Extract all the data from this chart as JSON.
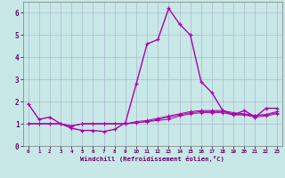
{
  "xlabel": "Windchill (Refroidissement éolien,°C)",
  "background_color": "#c8e8e8",
  "grid_color": "#aab8cc",
  "line_color": "#aa00aa",
  "hours": [
    0,
    1,
    2,
    3,
    4,
    5,
    6,
    7,
    8,
    9,
    10,
    11,
    12,
    13,
    14,
    15,
    16,
    17,
    18,
    19,
    20,
    21,
    22,
    23
  ],
  "line_main": [
    1.9,
    1.2,
    1.3,
    1.0,
    0.8,
    0.7,
    0.7,
    0.65,
    0.75,
    1.05,
    2.8,
    4.6,
    4.8,
    6.2,
    5.5,
    5.0,
    2.9,
    2.4,
    1.6,
    1.4,
    1.6,
    1.3,
    1.7,
    1.7
  ],
  "line_flat1": [
    1.0,
    1.0,
    1.0,
    1.0,
    0.9,
    1.0,
    1.0,
    1.0,
    1.0,
    1.0,
    1.05,
    1.1,
    1.15,
    1.2,
    1.35,
    1.45,
    1.5,
    1.5,
    1.5,
    1.4,
    1.4,
    1.3,
    1.35,
    1.45
  ],
  "line_flat2": [
    1.0,
    1.0,
    1.0,
    1.0,
    0.9,
    1.0,
    1.0,
    1.0,
    1.0,
    1.0,
    1.05,
    1.1,
    1.2,
    1.3,
    1.4,
    1.5,
    1.55,
    1.55,
    1.55,
    1.45,
    1.4,
    1.35,
    1.4,
    1.5
  ],
  "line_flat3": [
    1.0,
    1.0,
    1.0,
    1.0,
    0.9,
    1.0,
    1.0,
    1.0,
    1.0,
    1.0,
    1.1,
    1.15,
    1.25,
    1.35,
    1.45,
    1.55,
    1.6,
    1.6,
    1.6,
    1.5,
    1.45,
    1.38,
    1.42,
    1.55
  ],
  "ylim": [
    0,
    6.5
  ],
  "xlim": [
    -0.5,
    23.5
  ],
  "yticks": [
    0,
    1,
    2,
    3,
    4,
    5,
    6
  ],
  "xticks": [
    0,
    1,
    2,
    3,
    4,
    5,
    6,
    7,
    8,
    9,
    10,
    11,
    12,
    13,
    14,
    15,
    16,
    17,
    18,
    19,
    20,
    21,
    22,
    23
  ]
}
